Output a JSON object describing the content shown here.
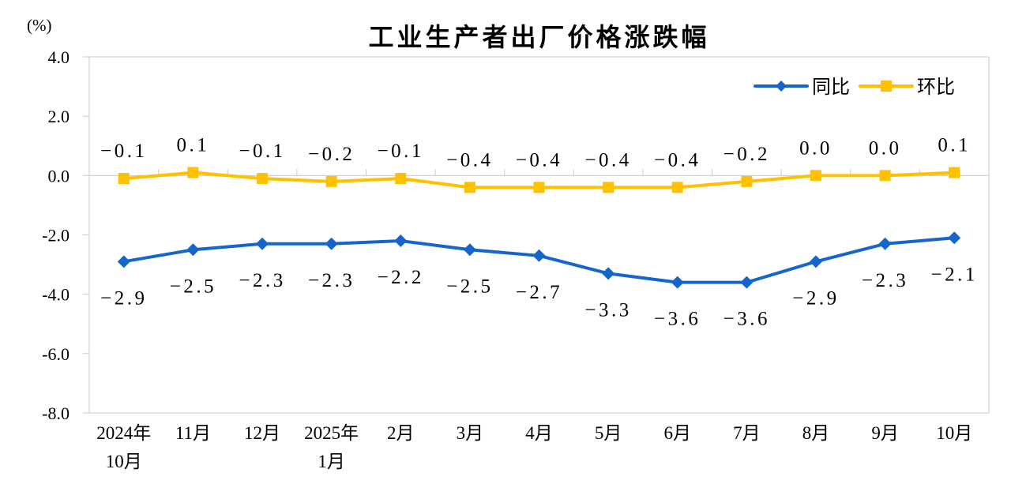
{
  "chart_data": {
    "type": "line",
    "title": "工业生产者出厂价格涨跌幅",
    "y_axis_unit": "(%)",
    "categories": [
      "2024年\n10月",
      "11月",
      "12月",
      "2025年\n1月",
      "2月",
      "3月",
      "4月",
      "5月",
      "6月",
      "7月",
      "8月",
      "9月",
      "10月"
    ],
    "series": [
      {
        "name": "同比",
        "color": "#1566CB",
        "marker": "diamond",
        "data_label_position": "below",
        "values": [
          -2.9,
          -2.5,
          -2.3,
          -2.3,
          -2.2,
          -2.5,
          -2.7,
          -3.3,
          -3.6,
          -3.6,
          -2.9,
          -2.3,
          -2.1
        ]
      },
      {
        "name": "环比",
        "color": "#FFC000",
        "marker": "square",
        "data_label_position": "above",
        "values": [
          -0.1,
          0.1,
          -0.1,
          -0.2,
          -0.1,
          -0.4,
          -0.4,
          -0.4,
          -0.4,
          -0.2,
          0.0,
          0.0,
          0.1
        ]
      }
    ],
    "ylim": [
      -8.0,
      4.0
    ],
    "y_ticks": [
      4.0,
      2.0,
      0.0,
      -2.0,
      -4.0,
      -6.0,
      -8.0
    ],
    "grid": "zero-axis-line-only",
    "legend_position": "top-right-inside",
    "axis_color": "#C9C9C9",
    "text_color": "#000000"
  }
}
